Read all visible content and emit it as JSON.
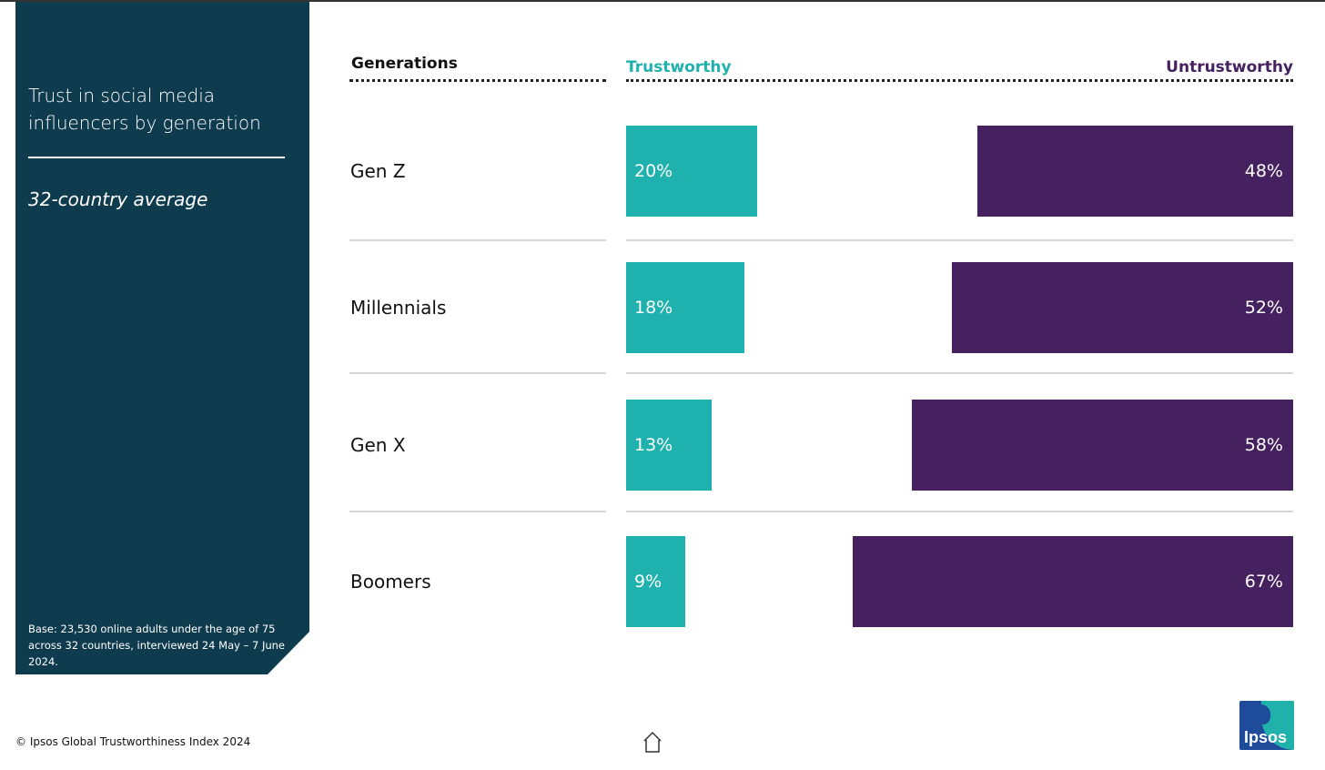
{
  "panel": {
    "title": "Trust in social media influencers by generation",
    "subtitle": "32-country average",
    "base_note": "Base: 23,530 online adults under the age of 75 across 32 countries, interviewed 24 May – 7 June 2024."
  },
  "headers": {
    "generations": "Generations",
    "trustworthy": "Trustworthy",
    "untrustworthy": "Untrustworthy"
  },
  "footer": {
    "copyright": "© Ipsos Global Trustworthiness Index 2024",
    "logo_text": "Ipsos"
  },
  "colors": {
    "panel": "#0f3b4e",
    "trustworthy": "#1fb1ad",
    "untrustworthy": "#45225f"
  },
  "icons": [
    "home-icon",
    "ipsos-logo"
  ],
  "chart_data": {
    "type": "bar",
    "title": "Trust in social media influencers by generation",
    "subtitle": "32-country average",
    "categories": [
      "Gen Z",
      "Millennials",
      "Gen X",
      "Boomers"
    ],
    "series": [
      {
        "name": "Trustworthy",
        "values": [
          20,
          18,
          13,
          9
        ],
        "labels": [
          "20%",
          "18%",
          "13%",
          "9%"
        ]
      },
      {
        "name": "Untrustworthy",
        "values": [
          48,
          52,
          58,
          67
        ],
        "labels": [
          "48%",
          "52%",
          "58%",
          "67%"
        ]
      }
    ],
    "ylim": [
      0,
      100
    ]
  }
}
